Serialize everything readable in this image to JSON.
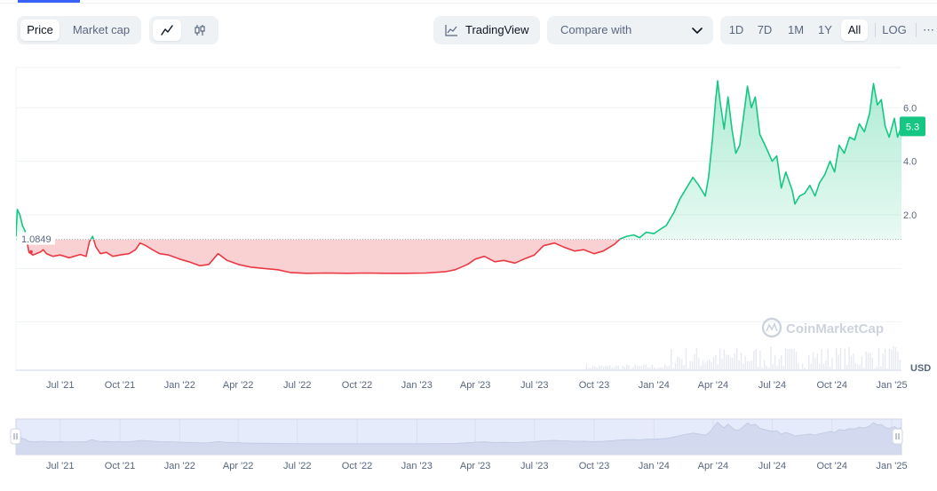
{
  "toolbar": {
    "price_tab": "Price",
    "market_cap_tab": "Market cap",
    "line_icon": "line-chart-icon",
    "candle_icon": "candlestick-icon",
    "tradingview_label": "TradingView",
    "compare_label": "Compare with",
    "ranges": [
      "1D",
      "7D",
      "1M",
      "1Y",
      "All"
    ],
    "active_range": "All",
    "log_label": "LOG",
    "more_label": "⋯"
  },
  "colors": {
    "up": "#16c784",
    "down": "#ea3943",
    "up_fill": "#d3f5e6",
    "down_fill": "#f9c5c8",
    "accent": "#3861fb"
  },
  "chart_data": {
    "type": "area",
    "baseline_label": "1.0849",
    "baseline": 1.0849,
    "current_label": "5.3",
    "currency_label": "USD",
    "watermark": "CoinMarketCap",
    "y_ticks": [
      "6.0",
      "4.0",
      "2.0"
    ],
    "ylim": [
      -3.8,
      7.5
    ],
    "x_ticks": [
      "Jul '21",
      "Oct '21",
      "Jan '22",
      "Apr '22",
      "Jul '22",
      "Oct '22",
      "Jan '23",
      "Apr '23",
      "Jul '23",
      "Oct '23",
      "Jan '24",
      "Apr '24",
      "Jul '24",
      "Oct '24",
      "Jan '25"
    ],
    "x_tick_dates": [
      "2021-07-01",
      "2021-10-01",
      "2022-01-01",
      "2022-04-01",
      "2022-07-01",
      "2022-10-01",
      "2023-01-01",
      "2023-04-01",
      "2023-07-01",
      "2023-10-01",
      "2024-01-01",
      "2024-04-01",
      "2024-07-01",
      "2024-10-01",
      "2025-01-01"
    ],
    "xlim": [
      "2021-04-24",
      "2025-01-16"
    ],
    "series": [
      {
        "points": [
          [
            "2021-04-24",
            1.2
          ],
          [
            "2021-04-26",
            2.2
          ],
          [
            "2021-04-30",
            2.0
          ],
          [
            "2021-05-04",
            1.6
          ],
          [
            "2021-05-08",
            1.4
          ],
          [
            "2021-05-14",
            0.6
          ],
          [
            "2021-05-20",
            0.5
          ],
          [
            "2021-06-01",
            0.62
          ],
          [
            "2021-06-05",
            0.7
          ],
          [
            "2021-06-10",
            0.55
          ],
          [
            "2021-06-20",
            0.45
          ],
          [
            "2021-07-01",
            0.5
          ],
          [
            "2021-07-15",
            0.4
          ],
          [
            "2021-08-01",
            0.52
          ],
          [
            "2021-08-10",
            0.45
          ],
          [
            "2021-08-15",
            1.0
          ],
          [
            "2021-08-20",
            1.2
          ],
          [
            "2021-08-25",
            0.8
          ],
          [
            "2021-09-01",
            0.55
          ],
          [
            "2021-09-10",
            0.6
          ],
          [
            "2021-09-20",
            0.45
          ],
          [
            "2021-10-01",
            0.5
          ],
          [
            "2021-10-15",
            0.55
          ],
          [
            "2021-10-25",
            0.7
          ],
          [
            "2021-11-01",
            0.95
          ],
          [
            "2021-11-10",
            0.85
          ],
          [
            "2021-11-20",
            0.7
          ],
          [
            "2021-12-01",
            0.55
          ],
          [
            "2021-12-15",
            0.5
          ],
          [
            "2022-01-01",
            0.35
          ],
          [
            "2022-01-15",
            0.25
          ],
          [
            "2022-02-01",
            0.1
          ],
          [
            "2022-02-15",
            0.15
          ],
          [
            "2022-03-01",
            0.55
          ],
          [
            "2022-03-15",
            0.3
          ],
          [
            "2022-04-01",
            0.15
          ],
          [
            "2022-04-20",
            0.05
          ],
          [
            "2022-05-10",
            0.0
          ],
          [
            "2022-06-01",
            -0.05
          ],
          [
            "2022-06-20",
            -0.15
          ],
          [
            "2022-07-15",
            -0.18
          ],
          [
            "2022-08-15",
            -0.17
          ],
          [
            "2022-09-15",
            -0.18
          ],
          [
            "2022-10-15",
            -0.17
          ],
          [
            "2022-11-15",
            -0.18
          ],
          [
            "2022-12-15",
            -0.18
          ],
          [
            "2023-01-15",
            -0.17
          ],
          [
            "2023-02-15",
            -0.12
          ],
          [
            "2023-03-01",
            -0.05
          ],
          [
            "2023-03-20",
            0.15
          ],
          [
            "2023-04-01",
            0.35
          ],
          [
            "2023-04-15",
            0.45
          ],
          [
            "2023-05-01",
            0.25
          ],
          [
            "2023-05-15",
            0.3
          ],
          [
            "2023-06-01",
            0.2
          ],
          [
            "2023-06-15",
            0.35
          ],
          [
            "2023-07-01",
            0.5
          ],
          [
            "2023-07-15",
            0.85
          ],
          [
            "2023-08-01",
            0.95
          ],
          [
            "2023-08-15",
            0.8
          ],
          [
            "2023-09-01",
            0.65
          ],
          [
            "2023-09-15",
            0.7
          ],
          [
            "2023-10-01",
            0.55
          ],
          [
            "2023-10-15",
            0.65
          ],
          [
            "2023-11-01",
            0.9
          ],
          [
            "2023-11-10",
            1.1
          ],
          [
            "2023-11-20",
            1.2
          ],
          [
            "2023-12-01",
            1.25
          ],
          [
            "2023-12-10",
            1.15
          ],
          [
            "2023-12-20",
            1.35
          ],
          [
            "2024-01-01",
            1.3
          ],
          [
            "2024-01-10",
            1.45
          ],
          [
            "2024-01-20",
            1.6
          ],
          [
            "2024-02-01",
            2.1
          ],
          [
            "2024-02-10",
            2.6
          ],
          [
            "2024-02-20",
            3.0
          ],
          [
            "2024-03-01",
            3.4
          ],
          [
            "2024-03-10",
            3.1
          ],
          [
            "2024-03-20",
            2.7
          ],
          [
            "2024-03-25",
            3.4
          ],
          [
            "2024-03-31",
            4.8
          ],
          [
            "2024-04-05",
            6.3
          ],
          [
            "2024-04-08",
            7.0
          ],
          [
            "2024-04-12",
            6.2
          ],
          [
            "2024-04-18",
            5.2
          ],
          [
            "2024-04-24",
            6.4
          ],
          [
            "2024-04-30",
            5.2
          ],
          [
            "2024-05-06",
            4.3
          ],
          [
            "2024-05-12",
            4.6
          ],
          [
            "2024-05-18",
            5.7
          ],
          [
            "2024-05-24",
            6.8
          ],
          [
            "2024-05-30",
            6.0
          ],
          [
            "2024-06-05",
            6.4
          ],
          [
            "2024-06-12",
            5.0
          ],
          [
            "2024-06-20",
            4.6
          ],
          [
            "2024-07-01",
            4.0
          ],
          [
            "2024-07-08",
            4.2
          ],
          [
            "2024-07-15",
            3.0
          ],
          [
            "2024-07-22",
            3.6
          ],
          [
            "2024-08-01",
            2.9
          ],
          [
            "2024-08-05",
            2.4
          ],
          [
            "2024-08-12",
            2.7
          ],
          [
            "2024-08-20",
            2.8
          ],
          [
            "2024-08-28",
            3.1
          ],
          [
            "2024-09-05",
            2.7
          ],
          [
            "2024-09-12",
            3.2
          ],
          [
            "2024-09-20",
            3.5
          ],
          [
            "2024-09-28",
            4.0
          ],
          [
            "2024-10-05",
            3.6
          ],
          [
            "2024-10-12",
            4.6
          ],
          [
            "2024-10-20",
            4.3
          ],
          [
            "2024-10-28",
            4.9
          ],
          [
            "2024-11-05",
            4.8
          ],
          [
            "2024-11-12",
            5.4
          ],
          [
            "2024-11-20",
            5.1
          ],
          [
            "2024-11-28",
            5.8
          ],
          [
            "2024-12-04",
            6.9
          ],
          [
            "2024-12-10",
            6.1
          ],
          [
            "2024-12-16",
            6.3
          ],
          [
            "2024-12-22",
            5.3
          ],
          [
            "2024-12-28",
            4.9
          ],
          [
            "2025-01-05",
            5.6
          ],
          [
            "2025-01-10",
            4.9
          ],
          [
            "2025-01-16",
            5.3
          ]
        ]
      }
    ]
  }
}
